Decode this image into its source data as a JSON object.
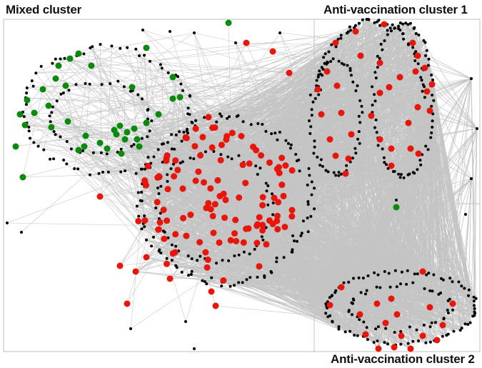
{
  "labels": {
    "mixed": "Mixed cluster",
    "anti1": "Anti-vaccination cluster 1",
    "anti2": "Anti-vaccination cluster 2"
  },
  "colors": {
    "edge": "#c4c4c4",
    "frame": "#bfbfbf",
    "node_neutral": "#000000",
    "node_antivax": "#e8150b",
    "node_provax": "#0a8a0a"
  }
}
